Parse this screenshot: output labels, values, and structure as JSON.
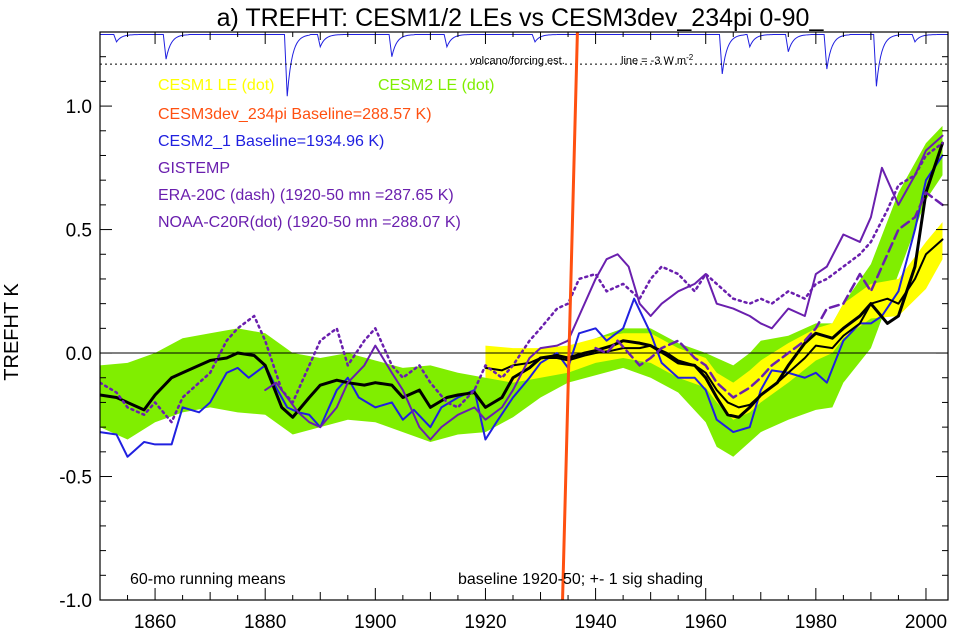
{
  "chart_data": {
    "type": "line",
    "title": "a) TREFHT: CESM1/2 LEs vs CESM3dev_234pi 0-90_",
    "ylabel": "TREFHT K",
    "xlabel": "",
    "xlim": [
      1850,
      2004
    ],
    "ylim": [
      -1.0,
      1.3
    ],
    "xticks": [
      1860,
      1880,
      1900,
      1920,
      1940,
      1960,
      1980,
      2000
    ],
    "yticks": [
      1.0,
      0.5,
      0.0,
      -0.5,
      -1.0
    ],
    "ytick_labels": [
      "1.0",
      "0.5",
      "0.0",
      "-0.5",
      "-1.0"
    ],
    "zero_line": 0.0,
    "colors": {
      "cesm1": "#ffff00",
      "cesm2": "#80ee00",
      "cesm3dev": "#ff5010",
      "cesm2_1": "#2020e0",
      "obs": "#6a1fae",
      "ensemble_mean": "#000000"
    },
    "legend": [
      {
        "label": "CESM1 LE (dot)",
        "color": "#ffff00"
      },
      {
        "label": "CESM2 LE (dot)",
        "color": "#80ee00"
      },
      {
        "label": "CESM3dev_234pi Baseline=288.57 K)",
        "color": "#ff5010"
      },
      {
        "label": "CESM2_1 Baseline=1934.96 K)",
        "color": "#2020e0"
      },
      {
        "label": "GISTEMP",
        "color": "#6a1fae"
      },
      {
        "label": "ERA-20C (dash) (1920-50 mn =287.65 K)",
        "color": "#6a1fae"
      },
      {
        "label": "NOAA-C20R(dot) (1920-50 mn =288.07 K)",
        "color": "#6a1fae"
      }
    ],
    "annotations": {
      "volcano_label": "volcano/forcing est.",
      "forcing_scale": "line = -3 W m",
      "forcing_scale_sup": "-2",
      "running_mean": "60-mo running means",
      "baseline_note": "baseline 1920-50; +- 1 sig shading"
    },
    "volcanic_forcing": {
      "baseline_level": 1.29,
      "reference_level": 1.17,
      "dips": [
        {
          "year": 1853,
          "depth": 0.03
        },
        {
          "year": 1862,
          "depth": 0.1
        },
        {
          "year": 1884,
          "depth": 0.25
        },
        {
          "year": 1890,
          "depth": 0.05
        },
        {
          "year": 1903,
          "depth": 0.09
        },
        {
          "year": 1913,
          "depth": 0.05
        },
        {
          "year": 1929,
          "depth": 0.03
        },
        {
          "year": 1963,
          "depth": 0.16
        },
        {
          "year": 1968,
          "depth": 0.05
        },
        {
          "year": 1975,
          "depth": 0.07
        },
        {
          "year": 1982,
          "depth": 0.14
        },
        {
          "year": 1991,
          "depth": 0.21
        },
        {
          "year": 1998,
          "depth": 0.03
        }
      ]
    },
    "series": [
      {
        "key": "cesm2_band",
        "kind": "band",
        "color": "#80ee00",
        "x": [
          1850,
          1855,
          1860,
          1865,
          1870,
          1875,
          1880,
          1885,
          1890,
          1895,
          1900,
          1905,
          1910,
          1915,
          1920,
          1925,
          1930,
          1935,
          1940,
          1945,
          1950,
          1955,
          1960,
          1962,
          1965,
          1968,
          1970,
          1975,
          1980,
          1983,
          1985,
          1990,
          1995,
          2000,
          2003
        ],
        "upper": [
          -0.05,
          -0.04,
          0.0,
          0.06,
          0.08,
          0.1,
          0.08,
          0.0,
          -0.02,
          0.0,
          -0.03,
          -0.06,
          -0.05,
          -0.08,
          -0.1,
          -0.06,
          -0.02,
          0.02,
          0.06,
          0.1,
          0.1,
          0.04,
          0.0,
          -0.02,
          -0.05,
          0.0,
          0.05,
          0.07,
          0.12,
          0.12,
          0.2,
          0.36,
          0.65,
          0.85,
          0.92
        ],
        "lower": [
          -0.3,
          -0.35,
          -0.28,
          -0.24,
          -0.22,
          -0.24,
          -0.25,
          -0.33,
          -0.3,
          -0.27,
          -0.28,
          -0.32,
          -0.36,
          -0.33,
          -0.32,
          -0.26,
          -0.18,
          -0.12,
          -0.09,
          -0.06,
          -0.1,
          -0.16,
          -0.28,
          -0.38,
          -0.42,
          -0.36,
          -0.32,
          -0.27,
          -0.23,
          -0.22,
          -0.12,
          0.02,
          0.32,
          0.62,
          0.72
        ]
      },
      {
        "key": "cesm1_band",
        "kind": "band",
        "color": "#ffff00",
        "x": [
          1920,
          1925,
          1930,
          1935,
          1940,
          1945,
          1950,
          1955,
          1960,
          1962,
          1965,
          1968,
          1970,
          1975,
          1980,
          1983,
          1985,
          1990,
          1995,
          2000,
          2003
        ],
        "upper": [
          0.03,
          0.02,
          0.02,
          0.03,
          0.06,
          0.08,
          0.08,
          0.02,
          -0.02,
          -0.08,
          -0.12,
          -0.07,
          -0.03,
          0.04,
          0.1,
          0.12,
          0.2,
          0.28,
          0.3,
          0.45,
          0.53
        ],
        "lower": [
          -0.1,
          -0.12,
          -0.1,
          -0.08,
          -0.04,
          -0.02,
          -0.04,
          -0.1,
          -0.14,
          -0.2,
          -0.27,
          -0.24,
          -0.2,
          -0.12,
          -0.03,
          0.0,
          0.06,
          0.14,
          0.15,
          0.26,
          0.38
        ]
      },
      {
        "key": "cesm2_1",
        "kind": "line",
        "color": "#2020e0",
        "dash": "",
        "x": [
          1850,
          1853,
          1855,
          1856,
          1858,
          1860,
          1863,
          1865,
          1868,
          1870,
          1873,
          1875,
          1877,
          1880,
          1882,
          1884,
          1886,
          1888,
          1890,
          1893,
          1895,
          1897,
          1900,
          1903,
          1905,
          1907,
          1910,
          1912,
          1915,
          1918,
          1920,
          1922,
          1925,
          1928,
          1930,
          1933,
          1935,
          1937,
          1940,
          1942,
          1945,
          1947,
          1950,
          1952,
          1955,
          1958,
          1960,
          1962,
          1965,
          1968,
          1970,
          1972,
          1975,
          1978,
          1980,
          1982,
          1985,
          1988,
          1990,
          1992,
          1995,
          1998,
          2000,
          2003
        ],
        "y": [
          -0.32,
          -0.33,
          -0.42,
          -0.4,
          -0.36,
          -0.37,
          -0.37,
          -0.22,
          -0.24,
          -0.2,
          -0.08,
          -0.06,
          -0.1,
          -0.05,
          -0.14,
          -0.22,
          -0.24,
          -0.25,
          -0.3,
          -0.15,
          -0.1,
          -0.18,
          -0.22,
          -0.2,
          -0.27,
          -0.23,
          -0.3,
          -0.22,
          -0.18,
          -0.15,
          -0.35,
          -0.28,
          -0.18,
          -0.1,
          -0.04,
          0.0,
          -0.06,
          0.08,
          0.1,
          0.05,
          0.1,
          0.22,
          0.08,
          -0.04,
          -0.1,
          -0.1,
          -0.15,
          -0.27,
          -0.32,
          -0.3,
          -0.15,
          -0.07,
          -0.08,
          -0.1,
          -0.08,
          -0.12,
          0.05,
          0.12,
          0.12,
          0.15,
          0.25,
          0.5,
          0.7,
          0.8
        ]
      },
      {
        "key": "cesm2_mean",
        "kind": "line",
        "color": "#000000",
        "dash": "",
        "width": 3,
        "x": [
          1850,
          1853,
          1855,
          1858,
          1860,
          1863,
          1865,
          1868,
          1870,
          1873,
          1875,
          1878,
          1880,
          1883,
          1885,
          1888,
          1890,
          1893,
          1895,
          1898,
          1900,
          1903,
          1905,
          1908,
          1910,
          1913,
          1915,
          1918,
          1920,
          1923,
          1925,
          1928,
          1930,
          1933,
          1935,
          1938,
          1940,
          1943,
          1945,
          1948,
          1950,
          1953,
          1955,
          1958,
          1960,
          1962,
          1964,
          1966,
          1968,
          1970,
          1973,
          1975,
          1978,
          1980,
          1983,
          1985,
          1988,
          1990,
          1993,
          1995,
          1998,
          2000,
          2003
        ],
        "y": [
          -0.17,
          -0.18,
          -0.2,
          -0.23,
          -0.17,
          -0.1,
          -0.08,
          -0.05,
          -0.03,
          -0.02,
          0.0,
          -0.01,
          -0.05,
          -0.22,
          -0.26,
          -0.18,
          -0.13,
          -0.11,
          -0.12,
          -0.13,
          -0.12,
          -0.13,
          -0.18,
          -0.15,
          -0.22,
          -0.18,
          -0.17,
          -0.16,
          -0.22,
          -0.18,
          -0.1,
          -0.06,
          -0.02,
          -0.01,
          -0.02,
          0.0,
          0.01,
          0.03,
          0.05,
          0.04,
          0.03,
          -0.01,
          -0.04,
          -0.05,
          -0.1,
          -0.18,
          -0.25,
          -0.26,
          -0.22,
          -0.17,
          -0.12,
          -0.05,
          0.04,
          0.08,
          0.06,
          0.1,
          0.15,
          0.2,
          0.12,
          0.15,
          0.35,
          0.65,
          0.85
        ]
      },
      {
        "key": "cesm1_mean",
        "kind": "line",
        "color": "#000000",
        "dash": "",
        "width": 2,
        "x": [
          1920,
          1923,
          1925,
          1928,
          1930,
          1933,
          1935,
          1938,
          1940,
          1943,
          1945,
          1948,
          1950,
          1953,
          1955,
          1958,
          1960,
          1962,
          1964,
          1966,
          1968,
          1970,
          1973,
          1975,
          1978,
          1980,
          1983,
          1985,
          1988,
          1990,
          1993,
          1995,
          1998,
          2000,
          2003
        ],
        "y": [
          -0.06,
          -0.07,
          -0.05,
          -0.04,
          -0.02,
          -0.02,
          -0.03,
          -0.01,
          0.0,
          0.01,
          0.02,
          0.02,
          0.03,
          0.0,
          -0.03,
          -0.05,
          -0.08,
          -0.15,
          -0.2,
          -0.22,
          -0.21,
          -0.17,
          -0.12,
          -0.08,
          -0.02,
          0.03,
          0.02,
          0.07,
          0.12,
          0.2,
          0.22,
          0.2,
          0.3,
          0.4,
          0.46
        ]
      },
      {
        "key": "gistemp",
        "kind": "line",
        "color": "#6a1fae",
        "dash": "",
        "width": 2,
        "x": [
          1880,
          1882,
          1884,
          1886,
          1888,
          1890,
          1893,
          1895,
          1898,
          1900,
          1903,
          1905,
          1908,
          1910,
          1912,
          1915,
          1918,
          1920,
          1923,
          1925,
          1928,
          1930,
          1933,
          1935,
          1937,
          1940,
          1942,
          1944,
          1946,
          1948,
          1950,
          1952,
          1955,
          1958,
          1960,
          1962,
          1965,
          1968,
          1970,
          1972,
          1975,
          1978,
          1980,
          1982,
          1985,
          1988,
          1990,
          1992,
          1995,
          1998,
          2000,
          2003
        ],
        "y": [
          -0.15,
          -0.12,
          -0.18,
          -0.24,
          -0.28,
          -0.3,
          -0.22,
          -0.12,
          -0.05,
          0.03,
          -0.08,
          -0.15,
          -0.3,
          -0.35,
          -0.3,
          -0.25,
          -0.22,
          -0.27,
          -0.22,
          -0.15,
          -0.02,
          0.02,
          0.03,
          0.05,
          0.15,
          0.3,
          0.38,
          0.4,
          0.35,
          0.2,
          0.15,
          0.2,
          0.25,
          0.28,
          0.32,
          0.2,
          0.18,
          0.15,
          0.12,
          0.1,
          0.18,
          0.15,
          0.32,
          0.35,
          0.48,
          0.45,
          0.55,
          0.75,
          0.6,
          0.72,
          0.82,
          0.88
        ]
      },
      {
        "key": "era20c",
        "kind": "line",
        "color": "#6a1fae",
        "dash": "9 5",
        "width": 2.5,
        "x": [
          1940,
          1942,
          1944,
          1946,
          1948,
          1950,
          1952,
          1955,
          1958,
          1960,
          1962,
          1965,
          1968,
          1970,
          1972,
          1975,
          1978,
          1980,
          1982,
          1985,
          1988,
          1990,
          1993,
          1995,
          1998,
          2000,
          2003
        ],
        "y": [
          0.02,
          0.0,
          0.05,
          0.0,
          -0.05,
          -0.02,
          0.02,
          0.05,
          -0.02,
          -0.05,
          -0.12,
          -0.18,
          -0.14,
          -0.1,
          -0.05,
          0.0,
          0.05,
          0.1,
          0.18,
          0.2,
          0.32,
          0.25,
          0.4,
          0.5,
          0.55,
          0.65,
          0.6
        ]
      },
      {
        "key": "noaa20cr",
        "kind": "line",
        "color": "#6a1fae",
        "dash": "2 4",
        "width": 2.5,
        "x": [
          1850,
          1853,
          1855,
          1858,
          1860,
          1863,
          1865,
          1868,
          1870,
          1873,
          1875,
          1878,
          1880,
          1883,
          1885,
          1888,
          1890,
          1893,
          1895,
          1898,
          1900,
          1903,
          1905,
          1908,
          1910,
          1913,
          1915,
          1918,
          1920,
          1923,
          1925,
          1928,
          1930,
          1933,
          1935,
          1937,
          1940,
          1942,
          1945,
          1948,
          1950,
          1952,
          1955,
          1958,
          1960,
          1962,
          1965,
          1968,
          1970,
          1972,
          1975,
          1978,
          1980,
          1982,
          1985,
          1988,
          1990,
          1993,
          1995,
          1998,
          2000,
          2003
        ],
        "y": [
          -0.12,
          -0.16,
          -0.22,
          -0.25,
          -0.2,
          -0.28,
          -0.18,
          -0.12,
          -0.08,
          0.05,
          0.1,
          0.15,
          0.05,
          -0.15,
          -0.2,
          -0.05,
          0.05,
          0.1,
          -0.05,
          0.05,
          0.1,
          -0.05,
          -0.1,
          -0.05,
          -0.12,
          -0.2,
          -0.22,
          -0.15,
          -0.05,
          -0.1,
          -0.05,
          0.05,
          0.1,
          0.18,
          0.2,
          0.3,
          0.32,
          0.25,
          0.28,
          0.22,
          0.3,
          0.35,
          0.32,
          0.25,
          0.32,
          0.28,
          0.22,
          0.2,
          0.22,
          0.2,
          0.25,
          0.22,
          0.28,
          0.3,
          0.35,
          0.4,
          0.45,
          0.58,
          0.68,
          0.72,
          0.8,
          0.85
        ]
      },
      {
        "key": "cesm3dev",
        "kind": "line",
        "color": "#ff5010",
        "dash": "",
        "width": 3,
        "x": [
          1934,
          1936.7
        ],
        "y": [
          -1.0,
          1.3
        ]
      }
    ]
  }
}
